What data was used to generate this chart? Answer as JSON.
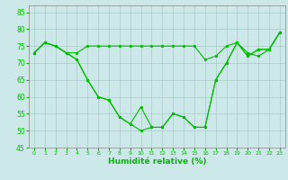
{
  "title": "",
  "xlabel": "Humidité relative (%)",
  "ylabel": "",
  "bg_color": "#cce8e8",
  "grid_color": "#aacccc",
  "line_color": "#00bb00",
  "marker_color": "#00bb00",
  "ylim": [
    45,
    87
  ],
  "xlim": [
    -0.5,
    23.5
  ],
  "yticks": [
    45,
    50,
    55,
    60,
    65,
    70,
    75,
    80,
    85
  ],
  "xticks": [
    0,
    1,
    2,
    3,
    4,
    5,
    6,
    7,
    8,
    9,
    10,
    11,
    12,
    13,
    14,
    15,
    16,
    17,
    18,
    19,
    20,
    21,
    22,
    23
  ],
  "series": [
    [
      73,
      76,
      75,
      73,
      73,
      75,
      75,
      75,
      75,
      75,
      75,
      75,
      75,
      75,
      75,
      75,
      71,
      72,
      75,
      76,
      73,
      72,
      74,
      79
    ],
    [
      73,
      76,
      75,
      73,
      71,
      65,
      60,
      59,
      54,
      52,
      57,
      51,
      51,
      55,
      54,
      51,
      51,
      65,
      70,
      76,
      72,
      74,
      74,
      79
    ],
    [
      73,
      76,
      75,
      73,
      71,
      65,
      60,
      59,
      54,
      52,
      50,
      51,
      51,
      55,
      54,
      51,
      51,
      65,
      70,
      76,
      72,
      74,
      74,
      79
    ]
  ]
}
